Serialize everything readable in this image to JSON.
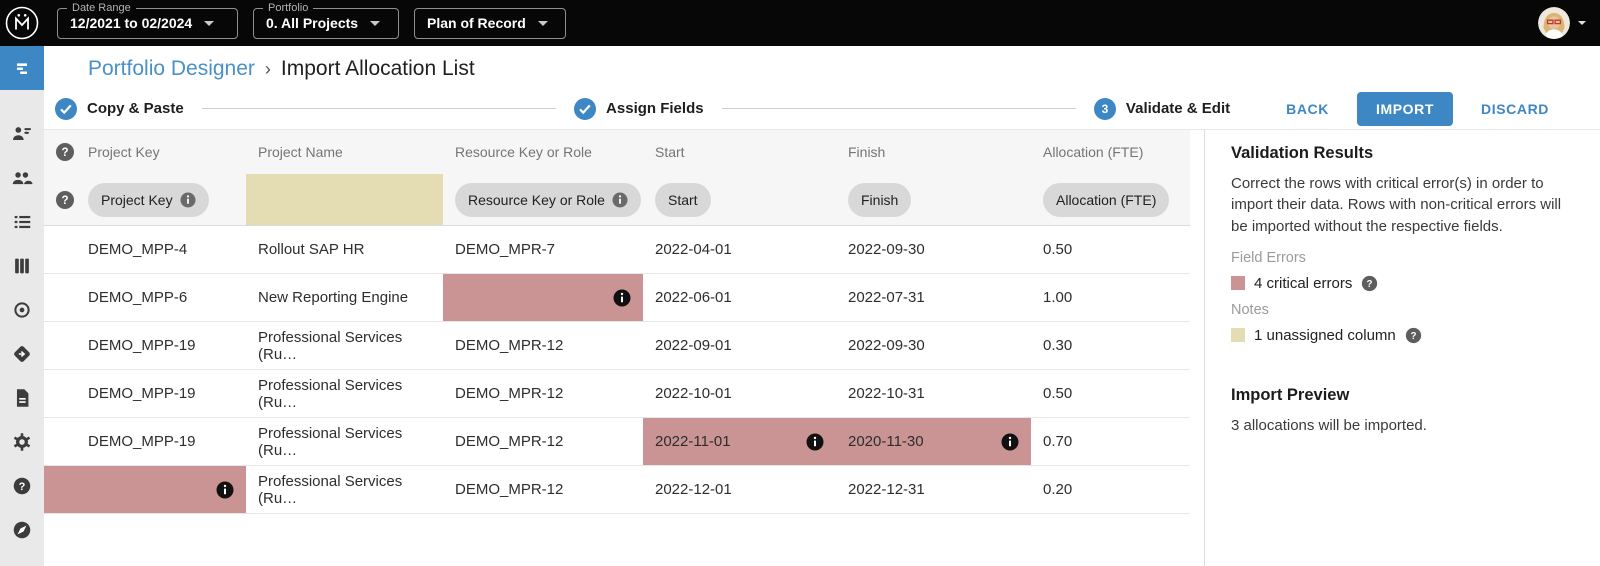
{
  "topbar": {
    "logo_text": "M",
    "filters": [
      {
        "label": "Date Range",
        "value": "12/2021 to 02/2024"
      },
      {
        "label": "Portfolio",
        "value": "0. All Projects"
      },
      {
        "label": "",
        "value": "Plan of Record"
      }
    ]
  },
  "sidebar": {
    "items": [
      {
        "icon": "gantt-icon",
        "name": "portfolio-designer",
        "active": true
      },
      {
        "icon": "person-list-icon",
        "name": "resource-assignments",
        "active": false
      },
      {
        "icon": "people-icon",
        "name": "resources",
        "active": false
      },
      {
        "icon": "list-icon",
        "name": "project-list",
        "active": false
      },
      {
        "icon": "columns-icon",
        "name": "board",
        "active": false
      },
      {
        "icon": "target-icon",
        "name": "goals",
        "active": false
      },
      {
        "icon": "milestone-icon",
        "name": "milestones",
        "active": false
      },
      {
        "icon": "document-icon",
        "name": "reports",
        "active": false
      },
      {
        "icon": "gear-icon",
        "name": "settings",
        "active": false
      },
      {
        "icon": "help-icon",
        "name": "help",
        "active": false
      },
      {
        "icon": "compass-icon",
        "name": "explore",
        "active": false
      }
    ]
  },
  "breadcrumb": {
    "parent": "Portfolio Designer",
    "separator": "›",
    "current": "Import Allocation List"
  },
  "stepper": {
    "steps": [
      {
        "label": "Copy & Paste",
        "state": "done"
      },
      {
        "label": "Assign Fields",
        "state": "done"
      },
      {
        "label": "Validate & Edit",
        "state": "current",
        "number": "3"
      }
    ],
    "back_label": "BACK",
    "import_label": "IMPORT",
    "discard_label": "DISCARD"
  },
  "table": {
    "columns": [
      "Project Key",
      "Project Name",
      "Resource Key or Role",
      "Start",
      "Finish",
      "Allocation (FTE)"
    ],
    "field_chips": [
      {
        "label": "Project Key",
        "info": true,
        "unassigned": false
      },
      {
        "label": "",
        "info": false,
        "unassigned": true
      },
      {
        "label": "Resource Key or Role",
        "info": true,
        "unassigned": false
      },
      {
        "label": "Start",
        "info": false,
        "unassigned": false
      },
      {
        "label": "Finish",
        "info": false,
        "unassigned": false
      },
      {
        "label": "Allocation (FTE)",
        "info": false,
        "unassigned": false
      }
    ],
    "rows": [
      [
        {
          "text": "DEMO_MPP-4",
          "error": false
        },
        {
          "text": "Rollout SAP HR",
          "error": false
        },
        {
          "text": "DEMO_MPR-7",
          "error": false
        },
        {
          "text": "2022-04-01",
          "error": false
        },
        {
          "text": "2022-09-30",
          "error": false
        },
        {
          "text": "0.50",
          "error": false
        }
      ],
      [
        {
          "text": "DEMO_MPP-6",
          "error": false
        },
        {
          "text": "New Reporting Engine",
          "error": false
        },
        {
          "text": "",
          "error": true
        },
        {
          "text": "2022-06-01",
          "error": false
        },
        {
          "text": "2022-07-31",
          "error": false
        },
        {
          "text": "1.00",
          "error": false
        }
      ],
      [
        {
          "text": "DEMO_MPP-19",
          "error": false
        },
        {
          "text": "Professional Services (Ru…",
          "error": false
        },
        {
          "text": "DEMO_MPR-12",
          "error": false
        },
        {
          "text": "2022-09-01",
          "error": false
        },
        {
          "text": "2022-09-30",
          "error": false
        },
        {
          "text": "0.30",
          "error": false
        }
      ],
      [
        {
          "text": "DEMO_MPP-19",
          "error": false
        },
        {
          "text": "Professional Services (Ru…",
          "error": false
        },
        {
          "text": "DEMO_MPR-12",
          "error": false
        },
        {
          "text": "2022-10-01",
          "error": false
        },
        {
          "text": "2022-10-31",
          "error": false
        },
        {
          "text": "0.50",
          "error": false
        }
      ],
      [
        {
          "text": "DEMO_MPP-19",
          "error": false
        },
        {
          "text": "Professional Services (Ru…",
          "error": false
        },
        {
          "text": "DEMO_MPR-12",
          "error": false
        },
        {
          "text": "2022-11-01",
          "error": true
        },
        {
          "text": "2020-11-30",
          "error": true
        },
        {
          "text": "0.70",
          "error": false
        }
      ],
      [
        {
          "text": "",
          "error": true
        },
        {
          "text": "Professional Services (Ru…",
          "error": false
        },
        {
          "text": "DEMO_MPR-12",
          "error": false
        },
        {
          "text": "2022-12-01",
          "error": false
        },
        {
          "text": "2022-12-31",
          "error": false
        },
        {
          "text": "0.20",
          "error": false
        }
      ]
    ]
  },
  "panel": {
    "validation_title": "Validation Results",
    "validation_text": "Correct the rows with critical error(s) in order to import their data. Rows with non-critical errors will be imported without the respective fields.",
    "field_errors_label": "Field Errors",
    "critical_errors_text": "4 critical errors",
    "notes_label": "Notes",
    "unassigned_text": "1 unassigned column",
    "preview_title": "Import Preview",
    "preview_text": "3 allocations will be imported."
  },
  "colors": {
    "accent_blue": "#3d87c4",
    "link_blue": "#4a90c8",
    "critical_error_red": "#ca9494",
    "note_tan": "#e4ddb4",
    "topbar_black": "#070707",
    "sidebar_gray": "#e9e9e9"
  }
}
